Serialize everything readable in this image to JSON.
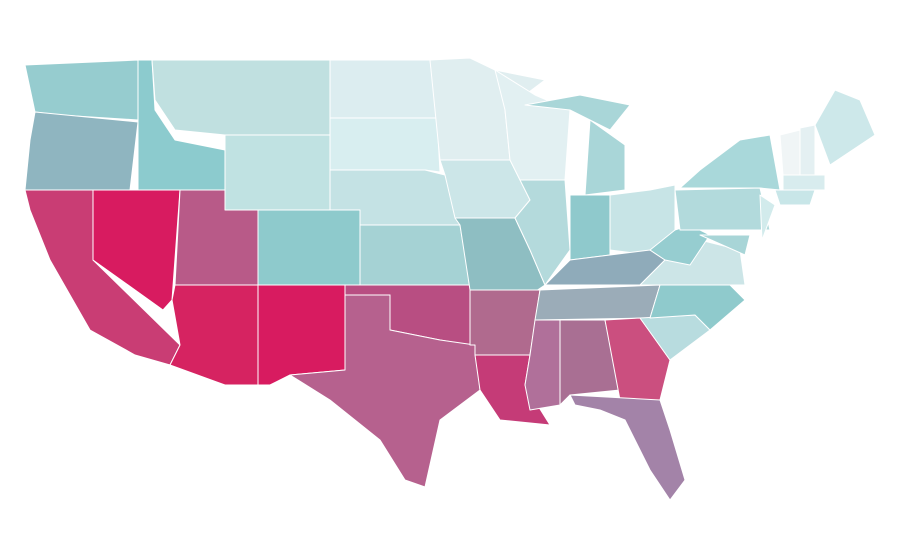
{
  "map": {
    "type": "choropleth",
    "region_colors": [
      "#96cccf",
      "#8fb5c0",
      "#c93d74",
      "#d81b60",
      "#8ccbce",
      "#c0e0e0",
      "#c0e2e2",
      "#b85a88",
      "#d62361",
      "#d81b60",
      "#8ecacc",
      "#dcedf0",
      "#d8eef0",
      "#c4e2e4",
      "#a5d2d4",
      "#b84e82",
      "#b6618e",
      "#e0eef0",
      "#cce6e8",
      "#8ebec2",
      "#b06a8e",
      "#c53b77",
      "#e2f0f2",
      "#b4dadc",
      "#a9d6d8",
      "#a9d6d8",
      "#8fc9cc",
      "#c7e4e6",
      "#8fabba",
      "#9bacb8",
      "#b0709a",
      "#a96f93",
      "#cb4f7f",
      "#a383a8",
      "#b8dcdf",
      "#8fcacc",
      "#cce5e7",
      "#96cdd0",
      "#b2dadc",
      "#a9d8da",
      "#d2ebec",
      "#a8d5d7",
      "#f0f5f6",
      "#e4f0f2",
      "#cde8ea",
      "#d8ecee",
      "#c8e6e8"
    ]
  }
}
